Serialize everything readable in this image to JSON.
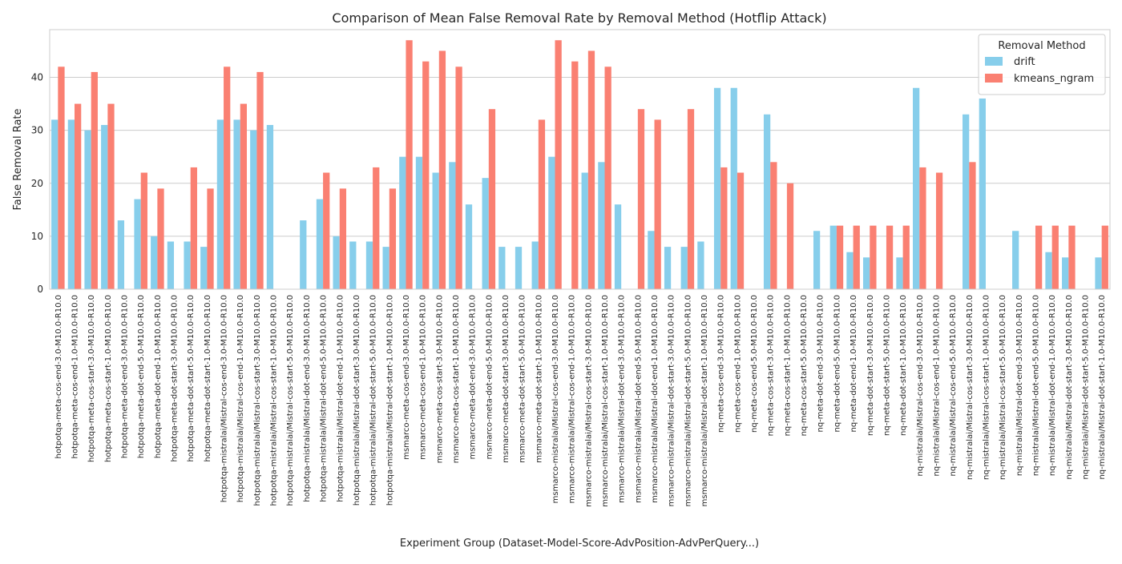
{
  "chart_data": {
    "type": "bar",
    "title": "Comparison of Mean False Removal Rate by Removal Method (Hotflip Attack)",
    "xlabel": "Experiment Group (Dataset-Model-Score-AdvPosition-AdvPerQuery...)",
    "ylabel": "False Removal Rate",
    "ylim": [
      0,
      49
    ],
    "yticks": [
      0,
      10,
      20,
      30,
      40
    ],
    "grid": "horizontal",
    "legend": {
      "title": "Removal Method",
      "placement": "top-right"
    },
    "categories": [
      "hotpotqa-meta-cos-end-3.0-M10.0-R10.0",
      "hotpotqa-meta-cos-end-1.0-M10.0-R10.0",
      "hotpotqa-meta-cos-start-3.0-M10.0-R10.0",
      "hotpotqa-meta-cos-start-1.0-M10.0-R10.0",
      "hotpotqa-meta-dot-end-3.0-M10.0-R10.0",
      "hotpotqa-meta-dot-end-5.0-M10.0-R10.0",
      "hotpotqa-meta-dot-end-1.0-M10.0-R10.0",
      "hotpotqa-meta-dot-start-3.0-M10.0-R10.0",
      "hotpotqa-meta-dot-start-5.0-M10.0-R10.0",
      "hotpotqa-meta-dot-start-1.0-M10.0-R10.0",
      "hotpotqa-mistralai/Mistral-cos-end-3.0-M10.0-R10.0",
      "hotpotqa-mistralai/Mistral-cos-end-1.0-M10.0-R10.0",
      "hotpotqa-mistralai/Mistral-cos-start-3.0-M10.0-R10.0",
      "hotpotqa-mistralai/Mistral-cos-start-1.0-M10.0-R10.0",
      "hotpotqa-mistralai/Mistral-cos-start-5.0-M10.0-R10.0",
      "hotpotqa-mistralai/Mistral-dot-end-3.0-M10.0-R10.0",
      "hotpotqa-mistralai/Mistral-dot-end-5.0-M10.0-R10.0",
      "hotpotqa-mistralai/Mistral-dot-end-1.0-M10.0-R10.0",
      "hotpotqa-mistralai/Mistral-dot-start-3.0-M10.0-R10.0",
      "hotpotqa-mistralai/Mistral-dot-start-5.0-M10.0-R10.0",
      "hotpotqa-mistralai/Mistral-dot-start-1.0-M10.0-R10.0",
      "msmarco-meta-cos-end-3.0-M10.0-R10.0",
      "msmarco-meta-cos-end-1.0-M10.0-R10.0",
      "msmarco-meta-cos-start-3.0-M10.0-R10.0",
      "msmarco-meta-cos-start-1.0-M10.0-R10.0",
      "msmarco-meta-dot-end-3.0-M10.0-R10.0",
      "msmarco-meta-dot-end-5.0-M10.0-R10.0",
      "msmarco-meta-dot-start-3.0-M10.0-R10.0",
      "msmarco-meta-dot-start-5.0-M10.0-R10.0",
      "msmarco-meta-dot-start-1.0-M10.0-R10.0",
      "msmarco-mistralai/Mistral-cos-end-3.0-M10.0-R10.0",
      "msmarco-mistralai/Mistral-cos-end-1.0-M10.0-R10.0",
      "msmarco-mistralai/Mistral-cos-start-3.0-M10.0-R10.0",
      "msmarco-mistralai/Mistral-cos-start-1.0-M10.0-R10.0",
      "msmarco-mistralai/Mistral-dot-end-3.0-M10.0-R10.0",
      "msmarco-mistralai/Mistral-dot-end-5.0-M10.0-R10.0",
      "msmarco-mistralai/Mistral-dot-end-1.0-M10.0-R10.0",
      "msmarco-mistralai/Mistral-dot-start-3.0-M10.0-R10.0",
      "msmarco-mistralai/Mistral-dot-start-5.0-M10.0-R10.0",
      "msmarco-mistralai/Mistral-dot-start-1.0-M10.0-R10.0",
      "nq-meta-cos-end-3.0-M10.0-R10.0",
      "nq-meta-cos-end-1.0-M10.0-R10.0",
      "nq-meta-cos-end-5.0-M10.0-R10.0",
      "nq-meta-cos-start-3.0-M10.0-R10.0",
      "nq-meta-cos-start-1.0-M10.0-R10.0",
      "nq-meta-cos-start-5.0-M10.0-R10.0",
      "nq-meta-dot-end-3.0-M10.0-R10.0",
      "nq-meta-dot-end-5.0-M10.0-R10.0",
      "nq-meta-dot-end-1.0-M10.0-R10.0",
      "nq-meta-dot-start-3.0-M10.0-R10.0",
      "nq-meta-dot-start-5.0-M10.0-R10.0",
      "nq-meta-dot-start-1.0-M10.0-R10.0",
      "nq-mistralai/Mistral-cos-end-3.0-M10.0-R10.0",
      "nq-mistralai/Mistral-cos-end-1.0-M10.0-R10.0",
      "nq-mistralai/Mistral-cos-end-5.0-M10.0-R10.0",
      "nq-mistralai/Mistral-cos-start-3.0-M10.0-R10.0",
      "nq-mistralai/Mistral-cos-start-1.0-M10.0-R10.0",
      "nq-mistralai/Mistral-cos-start-5.0-M10.0-R10.0",
      "nq-mistralai/Mistral-dot-end-3.0-M10.0-R10.0",
      "nq-mistralai/Mistral-dot-end-5.0-M10.0-R10.0",
      "nq-mistralai/Mistral-dot-end-1.0-M10.0-R10.0",
      "nq-mistralai/Mistral-dot-start-3.0-M10.0-R10.0",
      "nq-mistralai/Mistral-dot-start-5.0-M10.0-R10.0",
      "nq-mistralai/Mistral-dot-start-1.0-M10.0-R10.0"
    ],
    "series": [
      {
        "name": "drift",
        "color": "#87ceeb",
        "values": [
          32,
          32,
          30,
          31,
          13,
          17,
          10,
          9,
          9,
          8,
          32,
          32,
          30,
          31,
          0,
          13,
          17,
          10,
          9,
          9,
          8,
          25,
          25,
          22,
          24,
          16,
          21,
          8,
          8,
          9,
          25,
          0,
          22,
          24,
          16,
          0,
          11,
          8,
          8,
          9,
          38,
          38,
          0,
          33,
          0,
          0,
          11,
          12,
          7,
          6,
          0,
          6,
          38,
          0,
          0,
          33,
          36,
          0,
          11,
          0,
          7,
          6,
          0,
          6
        ]
      },
      {
        "name": "kmeans_ngram",
        "color": "#fa8072",
        "values": [
          42,
          35,
          41,
          35,
          0,
          22,
          19,
          0,
          23,
          19,
          42,
          35,
          41,
          0,
          0,
          0,
          22,
          19,
          0,
          23,
          19,
          47,
          43,
          45,
          42,
          0,
          34,
          0,
          0,
          32,
          47,
          43,
          45,
          42,
          0,
          34,
          32,
          0,
          34,
          0,
          23,
          22,
          0,
          24,
          20,
          0,
          0,
          12,
          12,
          12,
          12,
          12,
          23,
          22,
          0,
          24,
          0,
          0,
          0,
          12,
          12,
          12,
          0,
          12
        ]
      }
    ]
  }
}
